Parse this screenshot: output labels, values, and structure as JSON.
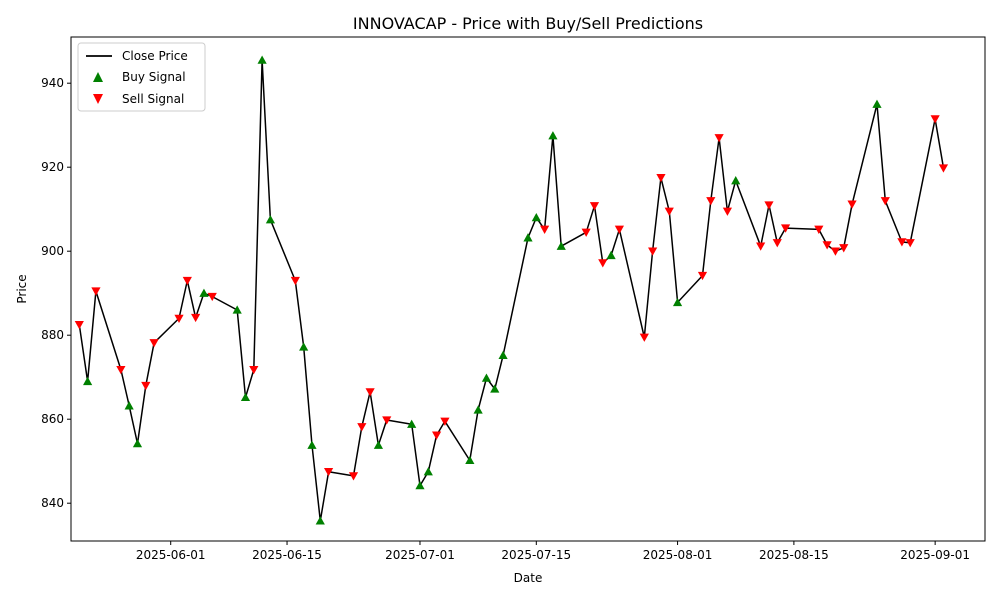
{
  "chart_data": {
    "type": "line",
    "title": "INNOVACAP - Price with Buy/Sell Predictions",
    "xlabel": "Date",
    "ylabel": "Price",
    "xlim": [
      "2025-05-20",
      "2025-09-07"
    ],
    "ylim": [
      831,
      951
    ],
    "x_ticks": [
      "2025-06-01",
      "2025-06-15",
      "2025-07-01",
      "2025-07-15",
      "2025-08-01",
      "2025-08-15",
      "2025-09-01"
    ],
    "y_ticks": [
      840,
      860,
      880,
      900,
      920,
      940
    ],
    "legend": {
      "position": "top-left",
      "entries": [
        "Close Price",
        "Buy Signal",
        "Sell Signal"
      ]
    },
    "colors": {
      "line": "#000000",
      "buy": "#008000",
      "sell": "#ff0000"
    },
    "series": [
      {
        "name": "Close Price",
        "points": [
          [
            "2025-05-21",
            882.5,
            "sell"
          ],
          [
            "2025-05-22",
            869.0,
            "buy"
          ],
          [
            "2025-05-23",
            890.5,
            "sell"
          ],
          [
            "2025-05-26",
            871.8,
            "sell"
          ],
          [
            "2025-05-27",
            863.2,
            "buy"
          ],
          [
            "2025-05-28",
            854.2,
            "buy"
          ],
          [
            "2025-05-29",
            868.0,
            "sell"
          ],
          [
            "2025-05-30",
            878.2,
            "sell"
          ],
          [
            "2025-06-02",
            884.0,
            "sell"
          ],
          [
            "2025-06-03",
            893.0,
            "sell"
          ],
          [
            "2025-06-04",
            884.2,
            "sell"
          ],
          [
            "2025-06-05",
            890.0,
            "buy"
          ],
          [
            "2025-06-06",
            889.2,
            "sell"
          ],
          [
            "2025-06-09",
            886.0,
            "buy"
          ],
          [
            "2025-06-10",
            865.2,
            "buy"
          ],
          [
            "2025-06-11",
            871.8,
            "sell"
          ],
          [
            "2025-06-12",
            945.5,
            "buy"
          ],
          [
            "2025-06-13",
            907.5,
            "buy"
          ],
          [
            "2025-06-16",
            893.0,
            "sell"
          ],
          [
            "2025-06-17",
            877.2,
            "buy"
          ],
          [
            "2025-06-18",
            853.8,
            "buy"
          ],
          [
            "2025-06-19",
            835.8,
            "buy"
          ],
          [
            "2025-06-20",
            847.5,
            "sell"
          ],
          [
            "2025-06-23",
            846.5,
            "sell"
          ],
          [
            "2025-06-24",
            858.2,
            "sell"
          ],
          [
            "2025-06-25",
            866.5,
            "sell"
          ],
          [
            "2025-06-26",
            853.8,
            "buy"
          ],
          [
            "2025-06-27",
            859.8,
            "sell"
          ],
          [
            "2025-06-30",
            858.8,
            "buy"
          ],
          [
            "2025-07-01",
            844.2,
            "buy"
          ],
          [
            "2025-07-02",
            847.5,
            "buy"
          ],
          [
            "2025-07-03",
            856.2,
            "sell"
          ],
          [
            "2025-07-04",
            859.5,
            "sell"
          ],
          [
            "2025-07-07",
            850.2,
            "buy"
          ],
          [
            "2025-07-08",
            862.2,
            "buy"
          ],
          [
            "2025-07-09",
            869.8,
            "buy"
          ],
          [
            "2025-07-10",
            867.2,
            "buy"
          ],
          [
            "2025-07-11",
            875.2,
            "buy"
          ],
          [
            "2025-07-14",
            903.2,
            "buy"
          ],
          [
            "2025-07-15",
            908.0,
            "buy"
          ],
          [
            "2025-07-16",
            905.2,
            "sell"
          ],
          [
            "2025-07-17",
            927.5,
            "buy"
          ],
          [
            "2025-07-18",
            901.2,
            "buy"
          ],
          [
            "2025-07-21",
            904.5,
            "sell"
          ],
          [
            "2025-07-22",
            910.8,
            "sell"
          ],
          [
            "2025-07-23",
            897.2,
            "sell"
          ],
          [
            "2025-07-24",
            899.0,
            "buy"
          ],
          [
            "2025-07-25",
            905.2,
            "sell"
          ],
          [
            "2025-07-28",
            879.5,
            "sell"
          ],
          [
            "2025-07-29",
            900.0,
            "sell"
          ],
          [
            "2025-07-30",
            917.5,
            "sell"
          ],
          [
            "2025-07-31",
            909.5,
            "sell"
          ],
          [
            "2025-08-01",
            887.8,
            "buy"
          ],
          [
            "2025-08-04",
            894.2,
            "sell"
          ],
          [
            "2025-08-05",
            912.0,
            "sell"
          ],
          [
            "2025-08-06",
            927.0,
            "sell"
          ],
          [
            "2025-08-07",
            909.5,
            "sell"
          ],
          [
            "2025-08-08",
            916.8,
            "buy"
          ],
          [
            "2025-08-11",
            901.2,
            "sell"
          ],
          [
            "2025-08-12",
            911.0,
            "sell"
          ],
          [
            "2025-08-13",
            902.0,
            "sell"
          ],
          [
            "2025-08-14",
            905.5,
            "sell"
          ],
          [
            "2025-08-18",
            905.2,
            "sell"
          ],
          [
            "2025-08-19",
            901.5,
            "sell"
          ],
          [
            "2025-08-20",
            900.0,
            "sell"
          ],
          [
            "2025-08-21",
            900.8,
            "sell"
          ],
          [
            "2025-08-22",
            911.2,
            "sell"
          ],
          [
            "2025-08-25",
            935.0,
            "buy"
          ],
          [
            "2025-08-26",
            912.0,
            "sell"
          ],
          [
            "2025-08-28",
            902.2,
            "sell"
          ],
          [
            "2025-08-29",
            902.0,
            "sell"
          ],
          [
            "2025-09-01",
            931.5,
            "sell"
          ],
          [
            "2025-09-02",
            919.8,
            "sell"
          ]
        ]
      }
    ]
  }
}
